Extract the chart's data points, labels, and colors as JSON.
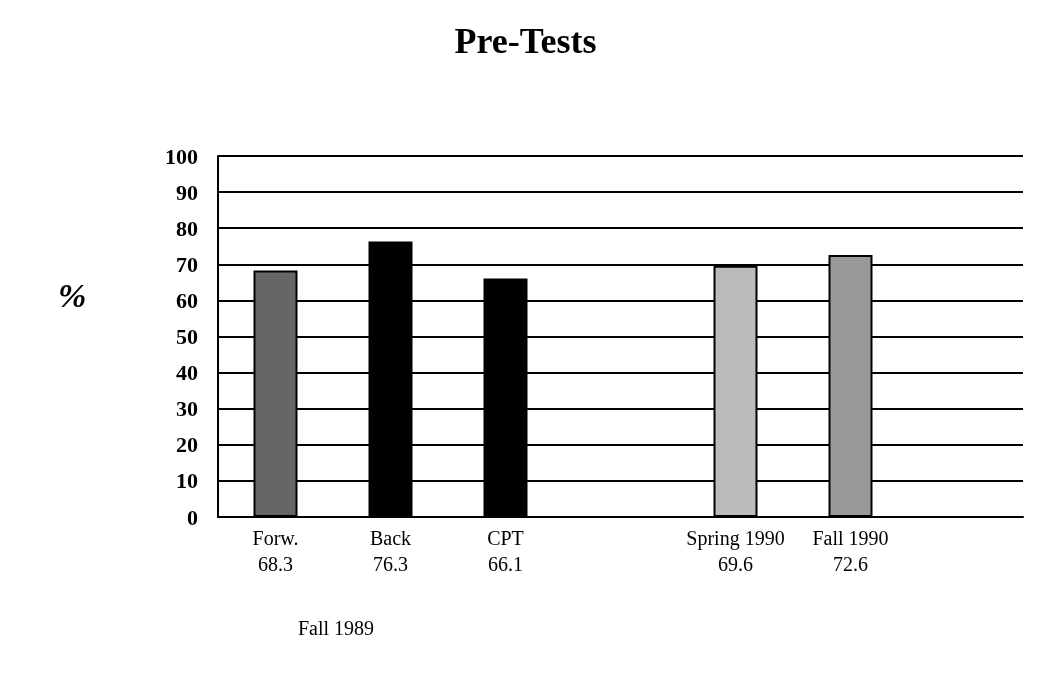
{
  "chart_data": {
    "type": "bar",
    "title": "Pre-Tests",
    "ylabel": "%",
    "categories": [
      "Forw.",
      "Back",
      "CPT",
      null,
      "Spring 1990",
      "Fall 1990",
      null
    ],
    "values": [
      68.3,
      76.3,
      66.1,
      null,
      69.6,
      72.6,
      null
    ],
    "colors": [
      "#666666",
      "#000000",
      "#000000",
      null,
      "#bbbbbb",
      "#999999",
      null
    ],
    "data_labels": true,
    "ylim": [
      0,
      100
    ],
    "yticks": [
      0,
      10,
      20,
      30,
      40,
      50,
      60,
      70,
      80,
      90,
      100
    ],
    "grid": "y",
    "annotations": [
      "Fall 1989"
    ]
  }
}
